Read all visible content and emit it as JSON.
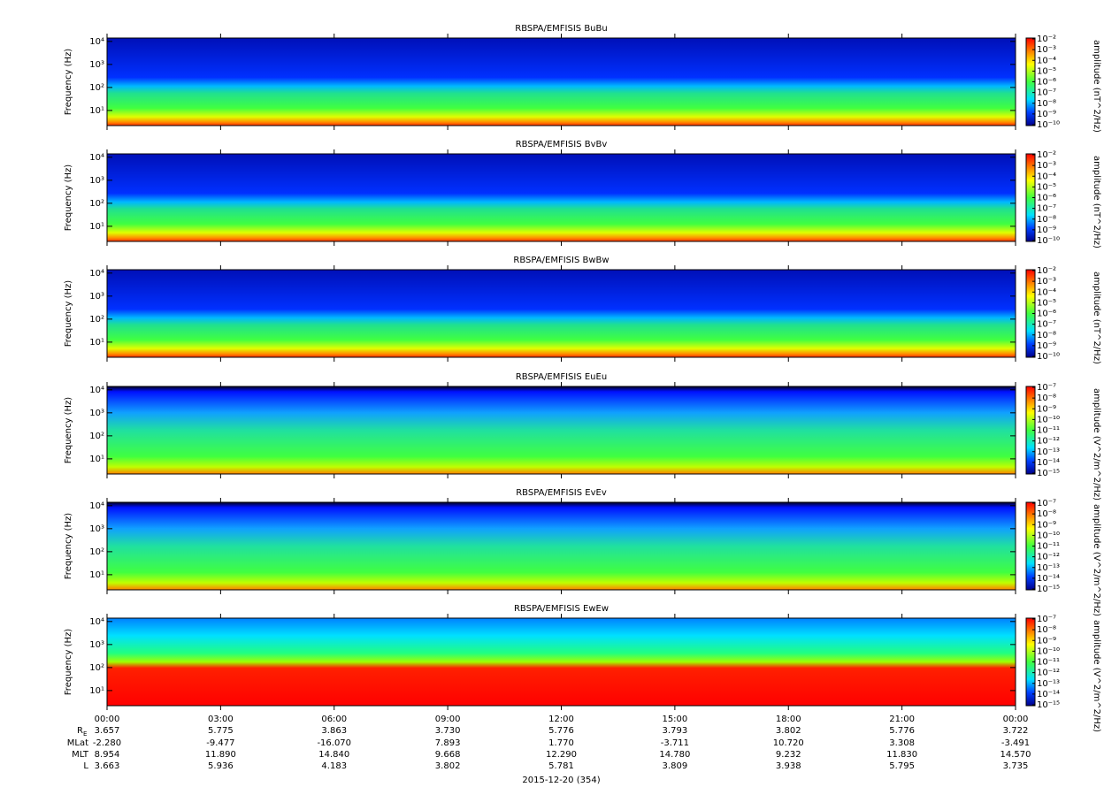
{
  "chart_data": [
    {
      "type": "spectrogram",
      "title": "RBSPA/EMFISIS  BuBu",
      "ylabel": "Frequency (Hz)",
      "log_y": true,
      "ylim": [
        2.2,
        14000
      ],
      "yticks": [
        {
          "value": 10,
          "label": "10¹"
        },
        {
          "value": 100,
          "label": "10²"
        },
        {
          "value": 1000,
          "label": "10³"
        },
        {
          "value": 10000,
          "label": "10⁴"
        }
      ],
      "zlabel": "amplitude (nT^2/Hz)",
      "log_z": true,
      "zlim": [
        1e-10,
        0.01
      ],
      "zticks": [
        {
          "value": 0.01,
          "label": "10⁻²"
        },
        {
          "value": 0.001,
          "label": "10⁻³"
        },
        {
          "value": 0.0001,
          "label": "10⁻⁴"
        },
        {
          "value": 1e-05,
          "label": "10⁻⁵"
        },
        {
          "value": 1e-06,
          "label": "10⁻⁶"
        },
        {
          "value": 1e-07,
          "label": "10⁻⁷"
        },
        {
          "value": 1e-08,
          "label": "10⁻⁸"
        },
        {
          "value": 1e-09,
          "label": "10⁻⁹"
        },
        {
          "value": 1e-10,
          "label": "10⁻¹⁰"
        }
      ]
    },
    {
      "type": "spectrogram",
      "title": "RBSPA/EMFISIS  BvBv",
      "ylabel": "Frequency (Hz)",
      "log_y": true,
      "ylim": [
        2.2,
        14000
      ],
      "yticks": [
        {
          "value": 10,
          "label": "10¹"
        },
        {
          "value": 100,
          "label": "10²"
        },
        {
          "value": 1000,
          "label": "10³"
        },
        {
          "value": 10000,
          "label": "10⁴"
        }
      ],
      "zlabel": "amplitude (nT^2/Hz)",
      "log_z": true,
      "zlim": [
        1e-10,
        0.01
      ],
      "zticks": [
        {
          "value": 0.01,
          "label": "10⁻²"
        },
        {
          "value": 0.001,
          "label": "10⁻³"
        },
        {
          "value": 0.0001,
          "label": "10⁻⁴"
        },
        {
          "value": 1e-05,
          "label": "10⁻⁵"
        },
        {
          "value": 1e-06,
          "label": "10⁻⁶"
        },
        {
          "value": 1e-07,
          "label": "10⁻⁷"
        },
        {
          "value": 1e-08,
          "label": "10⁻⁸"
        },
        {
          "value": 1e-09,
          "label": "10⁻⁹"
        },
        {
          "value": 1e-10,
          "label": "10⁻¹⁰"
        }
      ]
    },
    {
      "type": "spectrogram",
      "title": "RBSPA/EMFISIS  BwBw",
      "ylabel": "Frequency (Hz)",
      "log_y": true,
      "ylim": [
        2.2,
        14000
      ],
      "yticks": [
        {
          "value": 10,
          "label": "10¹"
        },
        {
          "value": 100,
          "label": "10²"
        },
        {
          "value": 1000,
          "label": "10³"
        },
        {
          "value": 10000,
          "label": "10⁴"
        }
      ],
      "zlabel": "amplitude (nT^2/Hz)",
      "log_z": true,
      "zlim": [
        1e-10,
        0.01
      ],
      "zticks": [
        {
          "value": 0.01,
          "label": "10⁻²"
        },
        {
          "value": 0.001,
          "label": "10⁻³"
        },
        {
          "value": 0.0001,
          "label": "10⁻⁴"
        },
        {
          "value": 1e-05,
          "label": "10⁻⁵"
        },
        {
          "value": 1e-06,
          "label": "10⁻⁶"
        },
        {
          "value": 1e-07,
          "label": "10⁻⁷"
        },
        {
          "value": 1e-08,
          "label": "10⁻⁸"
        },
        {
          "value": 1e-09,
          "label": "10⁻⁹"
        },
        {
          "value": 1e-10,
          "label": "10⁻¹⁰"
        }
      ]
    },
    {
      "type": "spectrogram",
      "title": "RBSPA/EMFISIS  EuEu",
      "ylabel": "Frequency (Hz)",
      "log_y": true,
      "ylim": [
        2.2,
        14000
      ],
      "yticks": [
        {
          "value": 10,
          "label": "10¹"
        },
        {
          "value": 100,
          "label": "10²"
        },
        {
          "value": 1000,
          "label": "10³"
        },
        {
          "value": 10000,
          "label": "10⁴"
        }
      ],
      "zlabel": "amplitude (V^2/m^2/Hz)",
      "log_z": true,
      "zlim": [
        1e-15,
        1e-07
      ],
      "zticks": [
        {
          "value": 1e-07,
          "label": "10⁻⁷"
        },
        {
          "value": 1e-08,
          "label": "10⁻⁸"
        },
        {
          "value": 1e-09,
          "label": "10⁻⁹"
        },
        {
          "value": 1e-10,
          "label": "10⁻¹⁰"
        },
        {
          "value": 1e-11,
          "label": "10⁻¹¹"
        },
        {
          "value": 1e-12,
          "label": "10⁻¹²"
        },
        {
          "value": 1e-13,
          "label": "10⁻¹³"
        },
        {
          "value": 1e-14,
          "label": "10⁻¹⁴"
        },
        {
          "value": 1e-15,
          "label": "10⁻¹⁵"
        }
      ]
    },
    {
      "type": "spectrogram",
      "title": "RBSPA/EMFISIS  EvEv",
      "ylabel": "Frequency (Hz)",
      "log_y": true,
      "ylim": [
        2.2,
        14000
      ],
      "yticks": [
        {
          "value": 10,
          "label": "10¹"
        },
        {
          "value": 100,
          "label": "10²"
        },
        {
          "value": 1000,
          "label": "10³"
        },
        {
          "value": 10000,
          "label": "10⁴"
        }
      ],
      "zlabel": "amplitude (V^2/m^2/Hz)",
      "log_z": true,
      "zlim": [
        1e-15,
        1e-07
      ],
      "zticks": [
        {
          "value": 1e-07,
          "label": "10⁻⁷"
        },
        {
          "value": 1e-08,
          "label": "10⁻⁸"
        },
        {
          "value": 1e-09,
          "label": "10⁻⁹"
        },
        {
          "value": 1e-10,
          "label": "10⁻¹⁰"
        },
        {
          "value": 1e-11,
          "label": "10⁻¹¹"
        },
        {
          "value": 1e-12,
          "label": "10⁻¹²"
        },
        {
          "value": 1e-13,
          "label": "10⁻¹³"
        },
        {
          "value": 1e-14,
          "label": "10⁻¹⁴"
        },
        {
          "value": 1e-15,
          "label": "10⁻¹⁵"
        }
      ]
    },
    {
      "type": "spectrogram",
      "title": "RBSPA/EMFISIS  EwEw",
      "ylabel": "Frequency (Hz)",
      "log_y": true,
      "ylim": [
        2.2,
        14000
      ],
      "yticks": [
        {
          "value": 10,
          "label": "10¹"
        },
        {
          "value": 100,
          "label": "10²"
        },
        {
          "value": 1000,
          "label": "10³"
        },
        {
          "value": 10000,
          "label": "10⁴"
        }
      ],
      "zlabel": "amplitude (V^2/m^2/Hz)",
      "log_z": true,
      "zlim": [
        1e-15,
        1e-07
      ],
      "zticks": [
        {
          "value": 1e-07,
          "label": "10⁻⁷"
        },
        {
          "value": 1e-08,
          "label": "10⁻⁸"
        },
        {
          "value": 1e-09,
          "label": "10⁻⁹"
        },
        {
          "value": 1e-10,
          "label": "10⁻¹⁰"
        },
        {
          "value": 1e-11,
          "label": "10⁻¹¹"
        },
        {
          "value": 1e-12,
          "label": "10⁻¹²"
        },
        {
          "value": 1e-13,
          "label": "10⁻¹³"
        },
        {
          "value": 1e-14,
          "label": "10⁻¹⁴"
        },
        {
          "value": 1e-15,
          "label": "10⁻¹⁵"
        }
      ]
    }
  ],
  "x_axis": {
    "categories": [
      "00:00",
      "03:00",
      "06:00",
      "09:00",
      "12:00",
      "15:00",
      "18:00",
      "21:00",
      "00:00"
    ],
    "rows": [
      {
        "name": "R",
        "sub": "E",
        "values": [
          "3.657",
          "5.775",
          "3.863",
          "3.730",
          "5.776",
          "3.793",
          "3.802",
          "5.776",
          "3.722"
        ]
      },
      {
        "name": "MLat",
        "values": [
          "-2.280",
          "-9.477",
          "-16.070",
          "7.893",
          "1.770",
          "-3.711",
          "10.720",
          "3.308",
          "-3.491"
        ]
      },
      {
        "name": "MLT",
        "values": [
          "8.954",
          "11.890",
          "14.840",
          "9.668",
          "12.290",
          "14.780",
          "9.232",
          "11.830",
          "14.570"
        ]
      },
      {
        "name": "L",
        "values": [
          "3.663",
          "5.936",
          "4.183",
          "3.802",
          "5.781",
          "3.809",
          "3.938",
          "5.795",
          "3.735"
        ]
      }
    ],
    "date": "2015-12-20 (354)"
  }
}
